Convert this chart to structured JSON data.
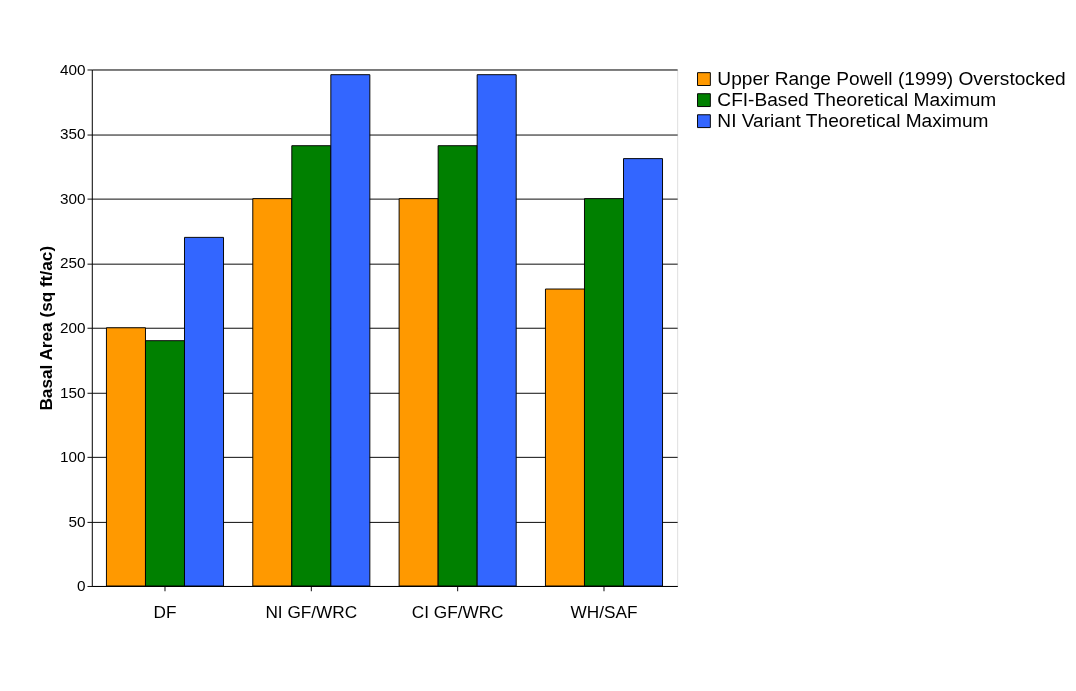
{
  "chart_data": {
    "type": "bar",
    "ylabel": "Basal Area (sq ft/ac)",
    "categories": [
      "DF",
      "NI GF/WRC",
      "CI GF/WRC",
      "WH/SAF"
    ],
    "series": [
      {
        "name": "Upper Range Powell (1999) Overstocked",
        "color": "#ff9900",
        "values": [
          200,
          300,
          300,
          230
        ]
      },
      {
        "name": "CFI-Based Theoretical Maximum",
        "color": "#008000",
        "values": [
          190,
          341,
          341,
          300
        ]
      },
      {
        "name": "NI Variant Theoretical Maximum",
        "color": "#3366ff",
        "values": [
          270,
          396,
          396,
          331
        ]
      }
    ],
    "ylim": [
      0,
      400
    ],
    "yticks": [
      0,
      50,
      100,
      150,
      200,
      250,
      300,
      350,
      400
    ],
    "grid": "y",
    "legend": "right"
  }
}
